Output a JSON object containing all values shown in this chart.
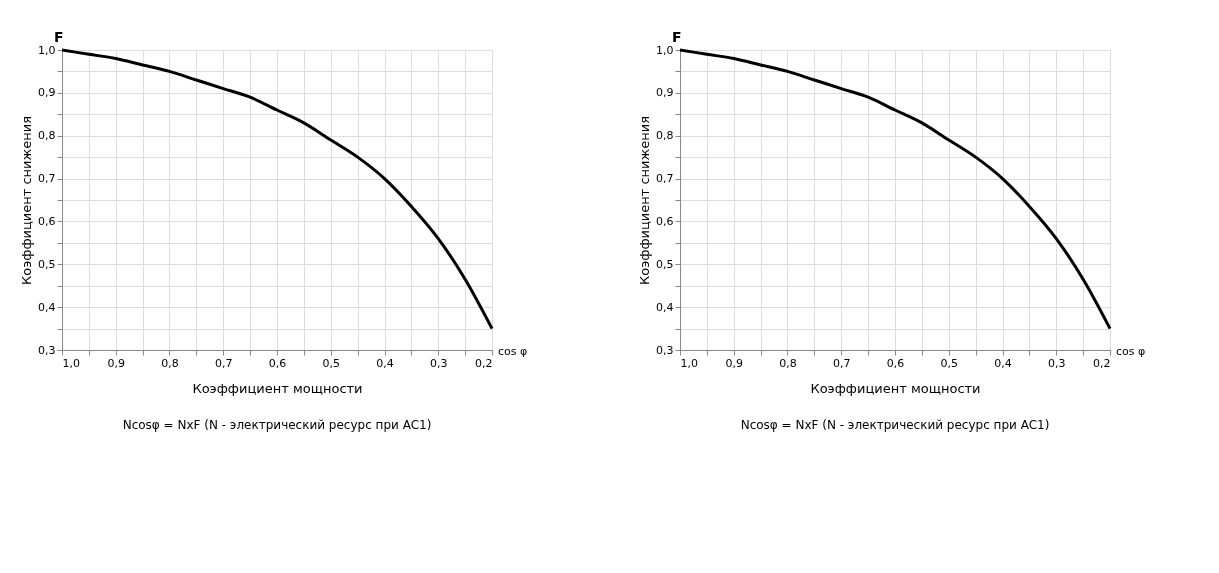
{
  "chart_data": [
    {
      "type": "line",
      "xlabel": "Коэффициент мощности",
      "ylabel": "Коэффициент снижения",
      "annotations": [
        "F",
        "cos φ",
        "Ncosφ = NxF    (N - электрический ресурс при AC1)"
      ],
      "x": [
        1.0,
        0.95,
        0.9,
        0.85,
        0.8,
        0.75,
        0.7,
        0.65,
        0.6,
        0.55,
        0.5,
        0.45,
        0.4,
        0.35,
        0.3,
        0.25,
        0.2
      ],
      "series": [
        {
          "color": "#000000",
          "values": [
            1.0,
            0.99,
            0.98,
            0.965,
            0.95,
            0.93,
            0.91,
            0.89,
            0.86,
            0.83,
            0.79,
            0.75,
            0.7,
            0.635,
            0.56,
            0.465,
            0.35
          ]
        }
      ],
      "xlim": [
        1.0,
        0.2
      ],
      "ylim": [
        0.3,
        1.0
      ],
      "xticks": [
        {
          "value": 1.0,
          "label": "1,0"
        },
        {
          "value": 0.95,
          "label": null
        },
        {
          "value": 0.9,
          "label": "0,9"
        },
        {
          "value": 0.85,
          "label": null
        },
        {
          "value": 0.8,
          "label": "0,8"
        },
        {
          "value": 0.75,
          "label": null
        },
        {
          "value": 0.7,
          "label": "0,7"
        },
        {
          "value": 0.65,
          "label": null
        },
        {
          "value": 0.6,
          "label": "0,6"
        },
        {
          "value": 0.55,
          "label": null
        },
        {
          "value": 0.5,
          "label": "0,5"
        },
        {
          "value": 0.45,
          "label": null
        },
        {
          "value": 0.4,
          "label": "0,4"
        },
        {
          "value": 0.35,
          "label": null
        },
        {
          "value": 0.3,
          "label": "0,3"
        },
        {
          "value": 0.25,
          "label": null
        },
        {
          "value": 0.2,
          "label": "0,2"
        }
      ],
      "yticks": [
        {
          "value": 0.3,
          "label": "0,3"
        },
        {
          "value": 0.35,
          "label": null
        },
        {
          "value": 0.4,
          "label": "0,4"
        },
        {
          "value": 0.45,
          "label": null
        },
        {
          "value": 0.5,
          "label": "0,5"
        },
        {
          "value": 0.55,
          "label": null
        },
        {
          "value": 0.6,
          "label": "0,6"
        },
        {
          "value": 0.65,
          "label": null
        },
        {
          "value": 0.7,
          "label": "0,7"
        },
        {
          "value": 0.75,
          "label": null
        },
        {
          "value": 0.8,
          "label": "0,8"
        },
        {
          "value": 0.85,
          "label": null
        },
        {
          "value": 0.9,
          "label": "0,9"
        },
        {
          "value": 0.95,
          "label": null
        },
        {
          "value": 1.0,
          "label": "1,0"
        }
      ],
      "grid": true,
      "marker": "none",
      "line_style": "solid"
    },
    {
      "type": "line",
      "xlabel": "Коэффициент мощности",
      "ylabel": "Коэффициент снижения",
      "annotations": [
        "F",
        "cos φ",
        "Ncosφ = NxF    (N - электрический ресурс при AC1)"
      ],
      "x": [
        1.0,
        0.95,
        0.9,
        0.85,
        0.8,
        0.75,
        0.7,
        0.65,
        0.6,
        0.55,
        0.5,
        0.45,
        0.4,
        0.35,
        0.3,
        0.25,
        0.2
      ],
      "series": [
        {
          "color": "#000000",
          "values": [
            1.0,
            0.99,
            0.98,
            0.965,
            0.95,
            0.93,
            0.91,
            0.89,
            0.86,
            0.83,
            0.79,
            0.75,
            0.7,
            0.635,
            0.56,
            0.465,
            0.35
          ]
        }
      ],
      "xlim": [
        1.0,
        0.2
      ],
      "ylim": [
        0.3,
        1.0
      ],
      "xticks": [
        {
          "value": 1.0,
          "label": "1,0"
        },
        {
          "value": 0.95,
          "label": null
        },
        {
          "value": 0.9,
          "label": "0,9"
        },
        {
          "value": 0.85,
          "label": null
        },
        {
          "value": 0.8,
          "label": "0,8"
        },
        {
          "value": 0.75,
          "label": null
        },
        {
          "value": 0.7,
          "label": "0,7"
        },
        {
          "value": 0.65,
          "label": null
        },
        {
          "value": 0.6,
          "label": "0,6"
        },
        {
          "value": 0.55,
          "label": null
        },
        {
          "value": 0.5,
          "label": "0,5"
        },
        {
          "value": 0.45,
          "label": null
        },
        {
          "value": 0.4,
          "label": "0,4"
        },
        {
          "value": 0.35,
          "label": null
        },
        {
          "value": 0.3,
          "label": "0,3"
        },
        {
          "value": 0.25,
          "label": null
        },
        {
          "value": 0.2,
          "label": "0,2"
        }
      ],
      "yticks": [
        {
          "value": 0.3,
          "label": "0,3"
        },
        {
          "value": 0.35,
          "label": null
        },
        {
          "value": 0.4,
          "label": "0,4"
        },
        {
          "value": 0.45,
          "label": null
        },
        {
          "value": 0.5,
          "label": "0,5"
        },
        {
          "value": 0.55,
          "label": null
        },
        {
          "value": 0.6,
          "label": "0,6"
        },
        {
          "value": 0.65,
          "label": null
        },
        {
          "value": 0.7,
          "label": "0,7"
        },
        {
          "value": 0.75,
          "label": null
        },
        {
          "value": 0.8,
          "label": "0,8"
        },
        {
          "value": 0.85,
          "label": null
        },
        {
          "value": 0.9,
          "label": "0,9"
        },
        {
          "value": 0.95,
          "label": null
        },
        {
          "value": 1.0,
          "label": "1,0"
        }
      ],
      "grid": true,
      "marker": "none",
      "line_style": "solid"
    }
  ]
}
